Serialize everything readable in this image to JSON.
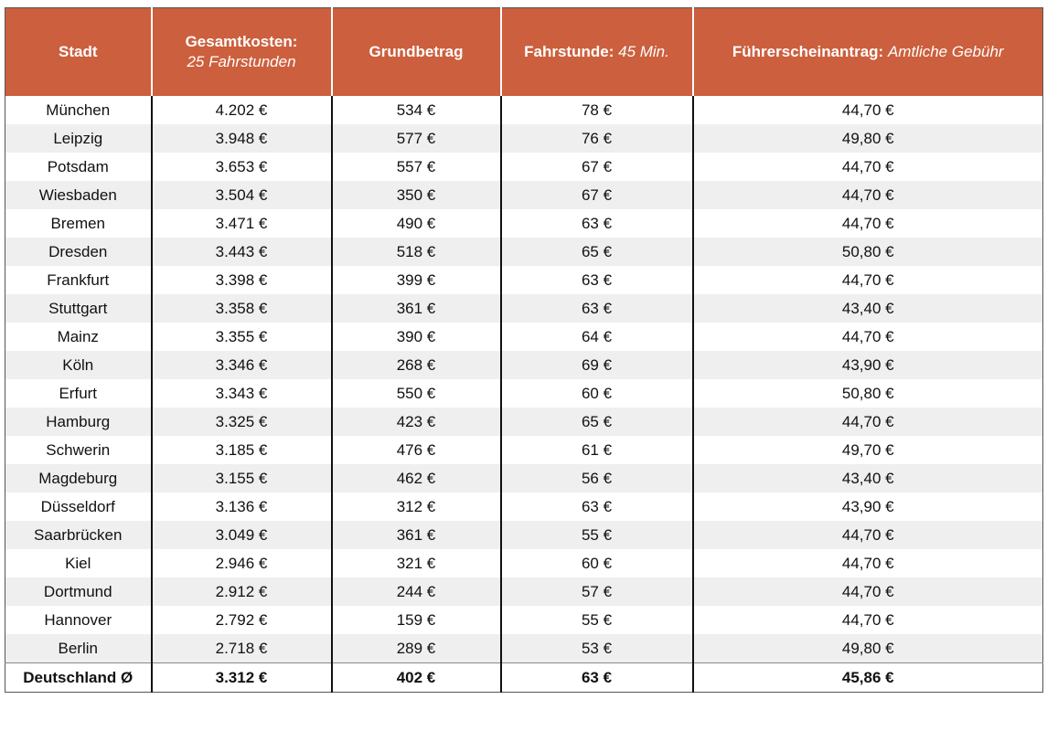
{
  "header": [
    {
      "bold": "Stadt"
    },
    {
      "bold": "Gesamtkosten:",
      "italic": "25 Fahrstunden"
    },
    {
      "bold": "Grundbetrag"
    },
    {
      "bold": "Fahrstunde:",
      "italic": "45 Min."
    },
    {
      "bold": "Führerscheinantrag:",
      "italic": "Amtliche Gebühr"
    }
  ],
  "rows": [
    [
      "München",
      "4.202 €",
      "534 €",
      "78 €",
      "44,70 €"
    ],
    [
      "Leipzig",
      "3.948 €",
      "577 €",
      "76 €",
      "49,80 €"
    ],
    [
      "Potsdam",
      "3.653 €",
      "557 €",
      "67 €",
      "44,70 €"
    ],
    [
      "Wiesbaden",
      "3.504 €",
      "350 €",
      "67 €",
      "44,70 €"
    ],
    [
      "Bremen",
      "3.471 €",
      "490 €",
      "63 €",
      "44,70 €"
    ],
    [
      "Dresden",
      "3.443 €",
      "518 €",
      "65 €",
      "50,80 €"
    ],
    [
      "Frankfurt",
      "3.398 €",
      "399 €",
      "63 €",
      "44,70 €"
    ],
    [
      "Stuttgart",
      "3.358 €",
      "361 €",
      "63 €",
      "43,40 €"
    ],
    [
      "Mainz",
      "3.355 €",
      "390 €",
      "64 €",
      "44,70 €"
    ],
    [
      "Köln",
      "3.346 €",
      "268 €",
      "69 €",
      "43,90 €"
    ],
    [
      "Erfurt",
      "3.343 €",
      "550 €",
      "60 €",
      "50,80 €"
    ],
    [
      "Hamburg",
      "3.325 €",
      "423 €",
      "65 €",
      "44,70 €"
    ],
    [
      "Schwerin",
      "3.185 €",
      "476 €",
      "61 €",
      "49,70 €"
    ],
    [
      "Magdeburg",
      "3.155 €",
      "462 €",
      "56 €",
      "43,40 €"
    ],
    [
      "Düsseldorf",
      "3.136 €",
      "312 €",
      "63 €",
      "43,90 €"
    ],
    [
      "Saarbrücken",
      "3.049 €",
      "361 €",
      "55 €",
      "44,70 €"
    ],
    [
      "Kiel",
      "2.946 €",
      "321 €",
      "60 €",
      "44,70 €"
    ],
    [
      "Dortmund",
      "2.912 €",
      "244 €",
      "57 €",
      "44,70 €"
    ],
    [
      "Hannover",
      "2.792 €",
      "159 €",
      "55 €",
      "44,70 €"
    ],
    [
      "Berlin",
      "2.718 €",
      "289 €",
      "53 €",
      "49,80 €"
    ]
  ],
  "summary": [
    "Deutschland Ø",
    "3.312 €",
    "402 €",
    "63 €",
    "45,86 €"
  ]
}
